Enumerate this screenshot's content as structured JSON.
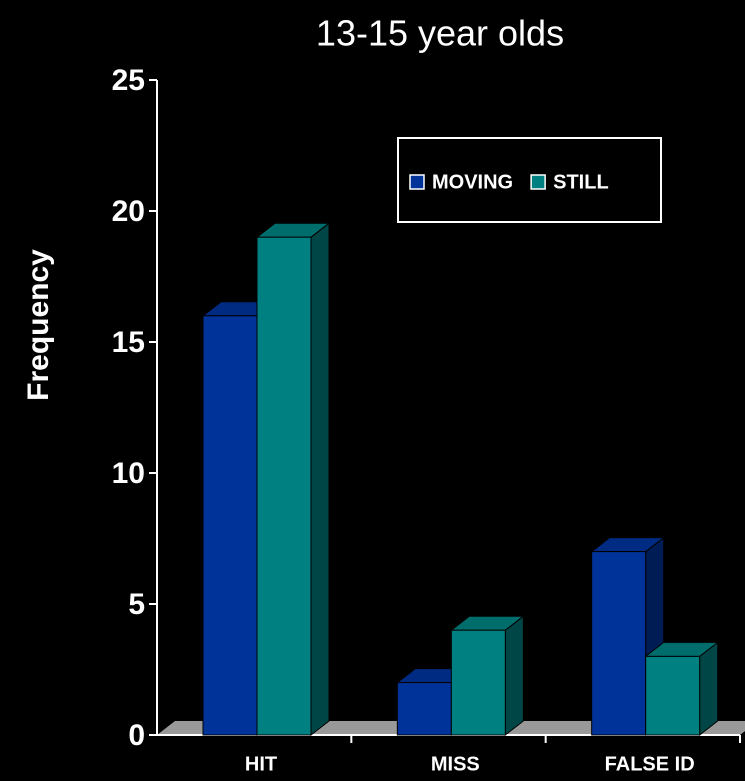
{
  "chart_data": {
    "type": "bar3d",
    "title": "13-15 year olds",
    "y_label": "Frequency",
    "categories": [
      "HIT",
      "MISS",
      "FALSE ID"
    ],
    "series": [
      {
        "name": "MOVING",
        "color": "#003399",
        "values": [
          16,
          2,
          7
        ]
      },
      {
        "name": "STILL",
        "color": "#008080",
        "values": [
          19,
          4,
          3
        ]
      }
    ],
    "ylim": [
      0,
      25
    ],
    "yticks": [
      0,
      5,
      10,
      15,
      20,
      25
    ],
    "legend": "upper right"
  }
}
